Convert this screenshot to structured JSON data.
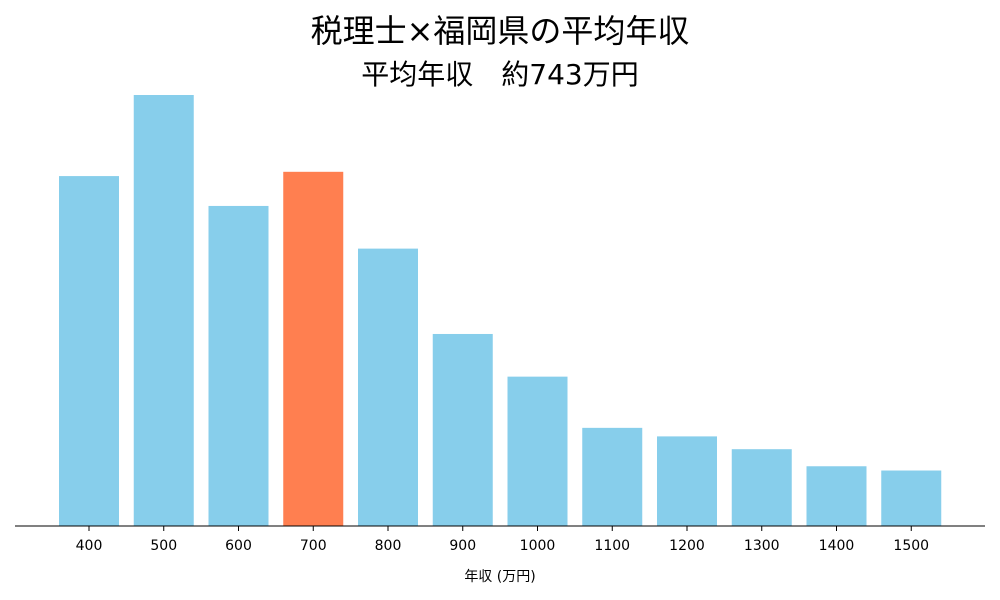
{
  "chart_data": {
    "type": "bar",
    "title": "税理士×福岡県の平均年収",
    "subtitle": "平均年収　約743万円",
    "xlabel": "年収 (万円)",
    "ylabel": "",
    "categories": [
      "400",
      "500",
      "600",
      "700",
      "800",
      "900",
      "1000",
      "1100",
      "1200",
      "1300",
      "1400",
      "1500"
    ],
    "values": [
      82,
      101,
      75,
      83,
      65,
      45,
      35,
      23,
      21,
      18,
      14,
      13
    ],
    "highlight_category": "700",
    "ylim": [
      0,
      105
    ],
    "grid": false,
    "legend": "none",
    "colors": {
      "bar": "#87ceeb",
      "highlight": "#ff7f50",
      "axis": "#000000",
      "text": "#000000"
    }
  }
}
